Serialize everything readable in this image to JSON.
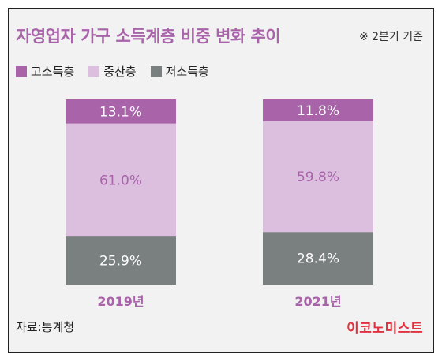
{
  "header": {
    "title": "자영업자 가구 소득계층 비중 변화 추이",
    "note": "※ 2분기 기준"
  },
  "legend": [
    {
      "label": "고소득층",
      "color": "#a863a9"
    },
    {
      "label": "중산층",
      "color": "#dcbfdf"
    },
    {
      "label": "저소득층",
      "color": "#7a7f80"
    }
  ],
  "chart_data": {
    "type": "bar",
    "stacked": true,
    "categories": [
      "2019년",
      "2021년"
    ],
    "series": [
      {
        "name": "고소득층",
        "values": [
          13.1,
          11.8
        ],
        "labels": [
          "13.1%",
          "11.8%"
        ],
        "color": "#a863a9",
        "label_color": "#ffffff"
      },
      {
        "name": "중산층",
        "values": [
          61.0,
          59.8
        ],
        "labels": [
          "61.0%",
          "59.8%"
        ],
        "color": "#dcbfdf",
        "label_color": "#a863a9"
      },
      {
        "name": "저소득층",
        "values": [
          25.9,
          28.4
        ],
        "labels": [
          "25.9%",
          "28.4%"
        ],
        "color": "#7a7f80",
        "label_color": "#ffffff"
      }
    ],
    "ylim": [
      0,
      100
    ],
    "category_label_color": "#a863a9"
  },
  "footer": {
    "source": "자료:통계청",
    "brand": "이코노미스트"
  }
}
